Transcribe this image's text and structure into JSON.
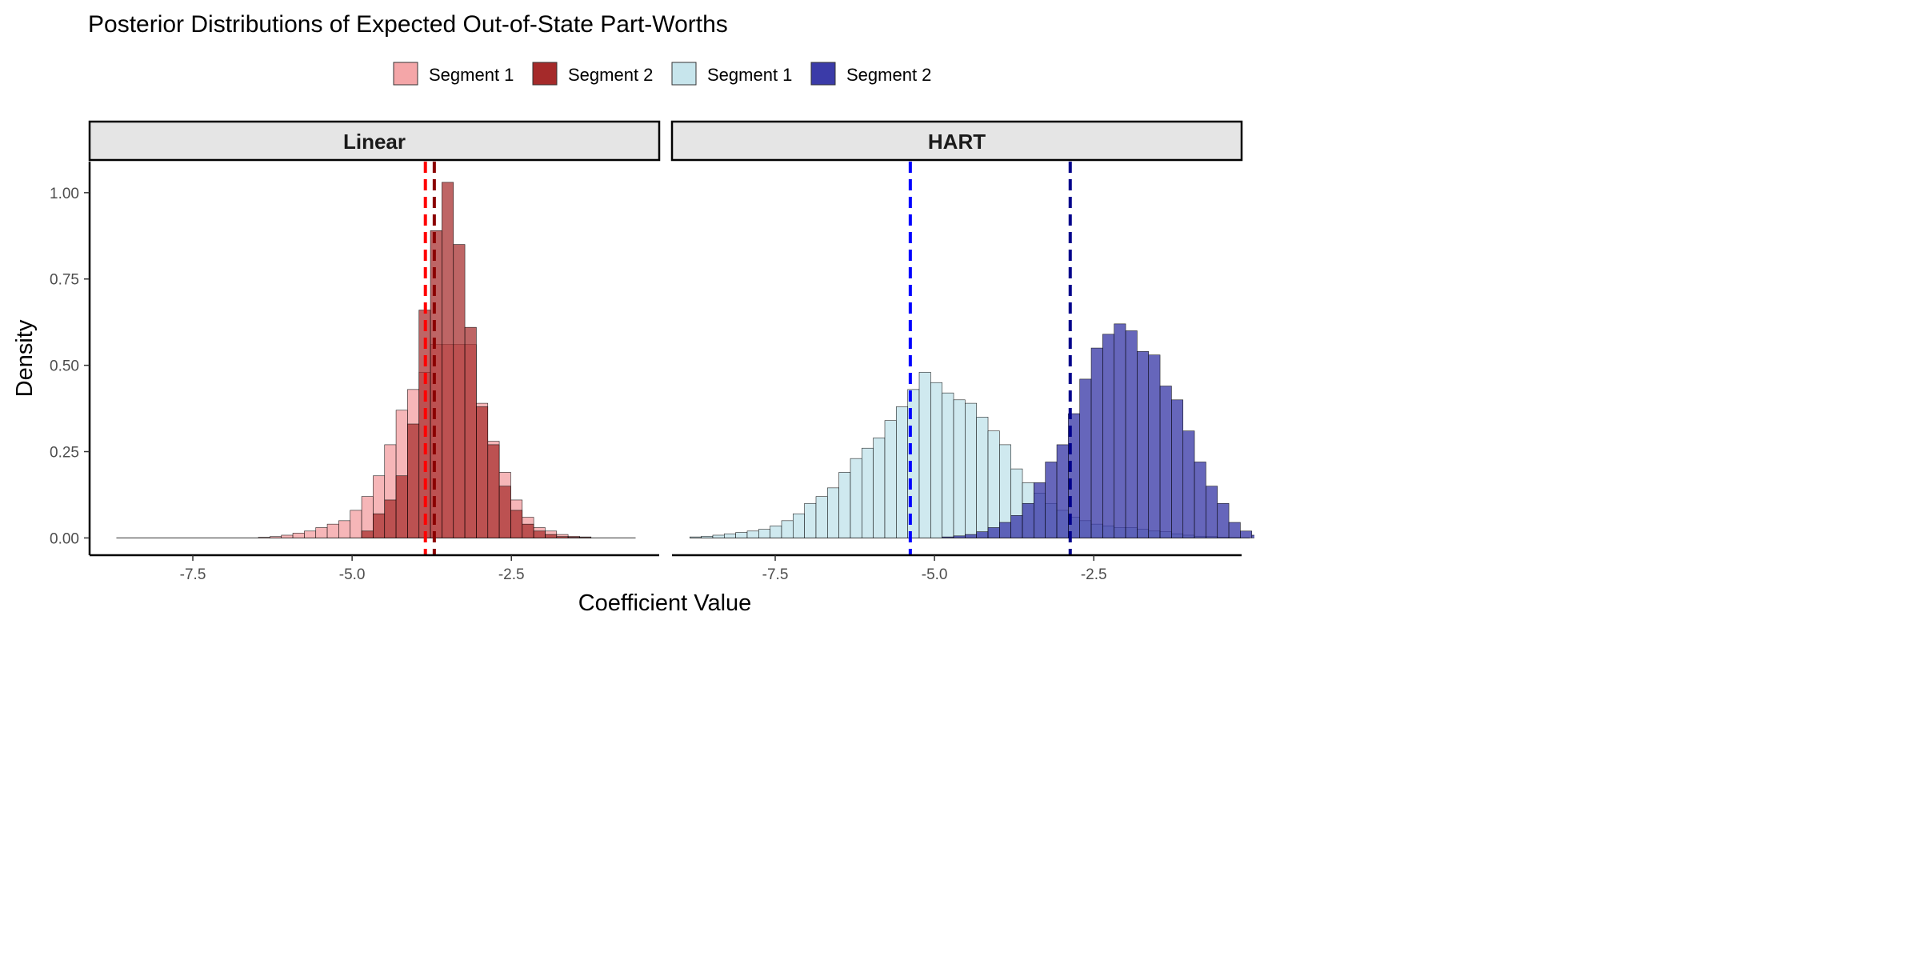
{
  "chart_data": {
    "type": "histogram",
    "title": "Posterior Distributions of Expected Out-of-State Part-Worths",
    "xlabel": "Coefficient Value",
    "ylabel": "Density",
    "xlim": [
      -9.12,
      -0.18
    ],
    "ylim": [
      -0.05,
      1.09
    ],
    "x_ticks": [
      -7.5,
      -5.0,
      -2.5
    ],
    "x_tick_labels": [
      "-7.5",
      "-5.0",
      "-2.5"
    ],
    "y_ticks": [
      0,
      0.25,
      0.5,
      0.75,
      1.0
    ],
    "y_tick_labels": [
      "0.00",
      "0.25",
      "0.50",
      "0.75",
      "1.00"
    ],
    "grid": false,
    "legend_position": "top",
    "bin_width": 0.18,
    "legend": [
      {
        "label": "Segment 1",
        "color": "#f4a6a8"
      },
      {
        "label": "Segment 2",
        "color": "#a52a2a"
      },
      {
        "label": "Segment 1",
        "color": "#c7e5ec"
      },
      {
        "label": "Segment 2",
        "color": "#3b3ba8"
      }
    ],
    "panels": [
      {
        "label": "Linear",
        "series": [
          {
            "name": "Segment 1",
            "fill": "#f4a6a8",
            "opacity": 0.82,
            "x_start": -6.47,
            "values": [
              0.002,
              0.004,
              0.008,
              0.014,
              0.02,
              0.03,
              0.04,
              0.05,
              0.08,
              0.12,
              0.18,
              0.27,
              0.37,
              0.43,
              0.48,
              0.56,
              0.56,
              0.56,
              0.56,
              0.39,
              0.28,
              0.19,
              0.11,
              0.06,
              0.03,
              0.02,
              0.01,
              0.005,
              0.003
            ]
          },
          {
            "name": "Segment 2",
            "fill": "#a52a2a",
            "opacity": 0.72,
            "x_start": -6.47,
            "values": [
              0,
              0,
              0,
              0,
              0,
              0,
              0,
              0,
              0,
              0.02,
              0.07,
              0.11,
              0.18,
              0.33,
              0.66,
              0.89,
              1.03,
              0.85,
              0.61,
              0.38,
              0.27,
              0.15,
              0.08,
              0.04,
              0.02,
              0.01,
              0.004,
              0.002,
              0.001
            ]
          }
        ],
        "baseline_range": [
          -8.7,
          -0.55
        ],
        "mean_lines": [
          {
            "x": -3.85,
            "color": "#ff0000"
          },
          {
            "x": -3.71,
            "color": "#8b0000"
          }
        ]
      },
      {
        "label": "HART",
        "series": [
          {
            "name": "Segment 1",
            "fill": "#c7e5ec",
            "opacity": 0.86,
            "x_start": -8.84,
            "values": [
              0.003,
              0.005,
              0.008,
              0.012,
              0.016,
              0.02,
              0.025,
              0.035,
              0.05,
              0.07,
              0.1,
              0.12,
              0.145,
              0.19,
              0.23,
              0.26,
              0.29,
              0.34,
              0.38,
              0.43,
              0.48,
              0.45,
              0.42,
              0.4,
              0.39,
              0.35,
              0.31,
              0.27,
              0.2,
              0.16,
              0.13,
              0.1,
              0.08,
              0.06,
              0.05,
              0.04,
              0.035,
              0.03,
              0.03,
              0.025,
              0.02,
              0.018,
              0.012,
              0.008,
              0.005,
              0.004,
              0.002,
              0.001
            ]
          },
          {
            "name": "Segment 2",
            "fill": "#3b3ba8",
            "opacity": 0.78,
            "x_start": -8.84,
            "values": [
              0,
              0,
              0,
              0,
              0,
              0,
              0,
              0,
              0,
              0,
              0,
              0,
              0,
              0,
              0,
              0,
              0,
              0,
              0,
              0,
              0,
              0,
              0.003,
              0.006,
              0.01,
              0.018,
              0.03,
              0.045,
              0.065,
              0.1,
              0.16,
              0.22,
              0.27,
              0.36,
              0.46,
              0.55,
              0.59,
              0.62,
              0.6,
              0.54,
              0.53,
              0.44,
              0.4,
              0.31,
              0.22,
              0.15,
              0.1,
              0.045,
              0.02,
              0.008,
              0.004
            ]
          }
        ],
        "baseline_range": [
          -8.84,
          -0.05
        ],
        "mean_lines": [
          {
            "x": -5.38,
            "color": "#0000ff"
          },
          {
            "x": -2.87,
            "color": "#00008b"
          }
        ]
      }
    ]
  }
}
